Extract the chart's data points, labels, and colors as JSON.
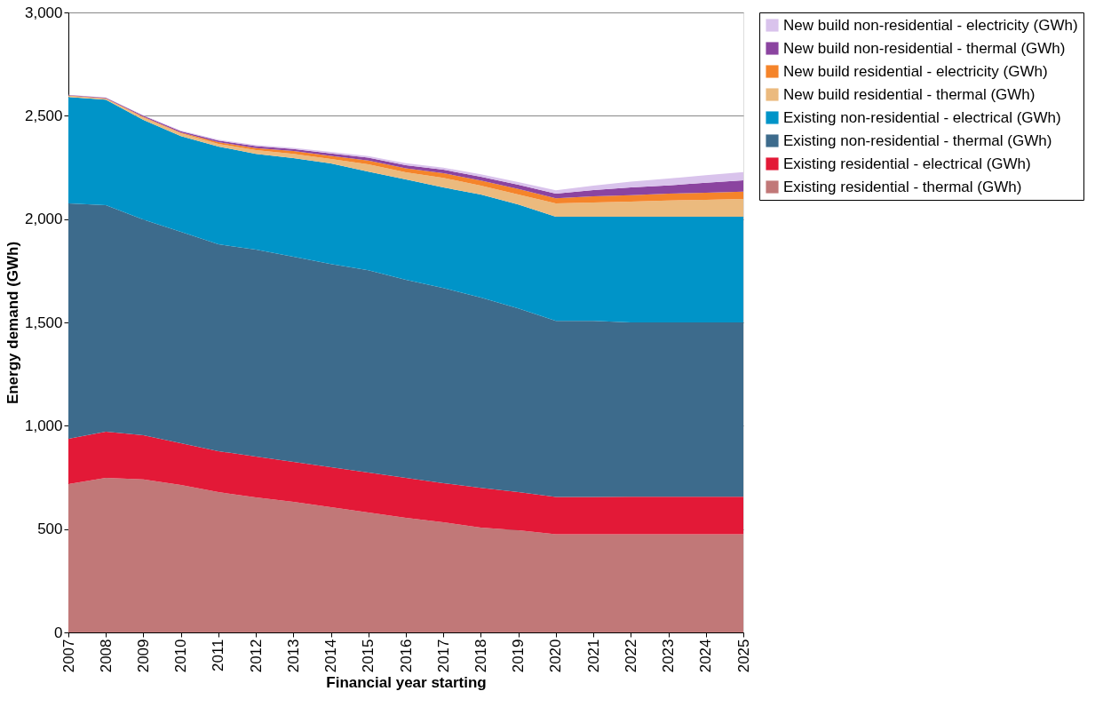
{
  "chart_data": {
    "type": "area",
    "stacked": true,
    "xlabel": "Financial year starting",
    "ylabel": "Energy demand (GWh)",
    "x": [
      2007,
      2008,
      2009,
      2010,
      2011,
      2012,
      2013,
      2014,
      2015,
      2016,
      2017,
      2018,
      2019,
      2020,
      2021,
      2022,
      2023,
      2024,
      2025
    ],
    "xlim": [
      2007,
      2025
    ],
    "xticks": [
      2007,
      2008,
      2009,
      2010,
      2011,
      2012,
      2013,
      2014,
      2015,
      2016,
      2017,
      2018,
      2019,
      2020,
      2021,
      2022,
      2023,
      2024,
      2025
    ],
    "ylim": [
      0,
      3000
    ],
    "yticks": [
      0,
      500,
      {
        "value": 1000,
        "label": "1,000"
      },
      {
        "value": 1500,
        "label": "1,500"
      },
      {
        "value": 2000,
        "label": "2,000"
      },
      {
        "value": 2500,
        "label": "2,500"
      },
      {
        "value": 3000,
        "label": "3,000"
      }
    ],
    "grid": "y",
    "legend": "right",
    "series": [
      {
        "name": "Existing residential - thermal (GWh)",
        "color": "#c17878",
        "values": [
          718,
          748,
          740,
          713,
          679,
          653,
          632,
          606,
          580,
          554,
          533,
          507,
          494,
          475,
          475,
          475,
          475,
          475,
          475
        ]
      },
      {
        "name": "Existing residential - electrical (GWh)",
        "color": "#e31937",
        "values": [
          219,
          223,
          214,
          202,
          198,
          198,
          193,
          193,
          194,
          194,
          189,
          193,
          185,
          180,
          180,
          182,
          182,
          182,
          182
        ]
      },
      {
        "name": "Existing non-residential - thermal (GWh)",
        "color": "#3d6b8c",
        "values": [
          1139,
          1096,
          1044,
          1023,
          1001,
          1001,
          993,
          984,
          979,
          958,
          945,
          920,
          889,
          853,
          853,
          843,
          843,
          843,
          843
        ]
      },
      {
        "name": "Existing non-residential - electrical (GWh)",
        "color": "#0094c8",
        "values": [
          515,
          511,
          482,
          464,
          473,
          464,
          477,
          486,
          477,
          486,
          486,
          499,
          503,
          503,
          503,
          511,
          511,
          511,
          511
        ]
      },
      {
        "name": "New build residential - thermal (GWh)",
        "color": "#ebba7e",
        "values": [
          5,
          4,
          12,
          13,
          13,
          18,
          21,
          22,
          35,
          34,
          47,
          43,
          48,
          65,
          69,
          74,
          79,
          82,
          86
        ]
      },
      {
        "name": "New build residential - electricity (GWh)",
        "color": "#f5842a",
        "values": [
          2,
          2,
          3,
          4,
          8,
          10,
          13,
          15,
          18,
          20,
          22,
          25,
          27,
          25,
          30,
          31,
          33,
          35,
          36
        ]
      },
      {
        "name": "New build non-residential - thermal (GWh)",
        "color": "#8b44a0",
        "values": [
          2,
          3,
          5,
          6,
          8,
          9,
          10,
          12,
          14,
          15,
          17,
          18,
          20,
          22,
          30,
          37,
          40,
          48,
          55
        ]
      },
      {
        "name": "New build non-residential - electricity (GWh)",
        "color": "#d9c3ec",
        "values": [
          1,
          1,
          2,
          3,
          4,
          5,
          6,
          7,
          8,
          9,
          10,
          12,
          13,
          16,
          22,
          28,
          33,
          36,
          39
        ]
      }
    ]
  }
}
